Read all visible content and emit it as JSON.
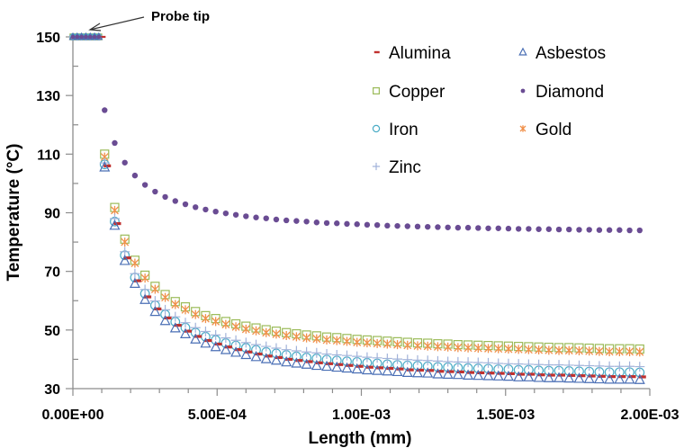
{
  "chart_data": {
    "type": "scatter",
    "title": "",
    "xlabel": "Length (mm)",
    "ylabel": "Temperature  (°C)",
    "xlim": [
      0,
      0.002
    ],
    "ylim": [
      30,
      150
    ],
    "x_ticks": [
      0,
      0.0005,
      0.001,
      0.0015,
      0.002
    ],
    "x_tick_labels": [
      "0.00E+00",
      "5.00E-04",
      "1.00E-03",
      "1.50E-03",
      "2.00E-03"
    ],
    "y_ticks": [
      30,
      50,
      70,
      90,
      110,
      130,
      150
    ],
    "y_tick_labels": [
      "30",
      "50",
      "70",
      "90",
      "110",
      "130",
      "150"
    ],
    "grid": false,
    "legend_position": "top-right",
    "annotation": {
      "text": "Probe tip",
      "points_to": [
        5e-05,
        150
      ]
    },
    "probe_tip": {
      "x": [
        0,
        1.5e-05,
        3e-05,
        4.5e-05,
        6e-05,
        7.5e-05,
        9e-05
      ],
      "temperature": 150
    },
    "x": [
      0.00011,
      0.000145,
      0.00018,
      0.000215,
      0.00025,
      0.000285,
      0.00032,
      0.000355,
      0.00039,
      0.000425,
      0.00046,
      0.000495,
      0.00053,
      0.000565,
      0.0006,
      0.000635,
      0.00067,
      0.000705,
      0.00074,
      0.000775,
      0.00081,
      0.000845,
      0.00088,
      0.000915,
      0.00095,
      0.000985,
      0.00102,
      0.001055,
      0.00109,
      0.001125,
      0.00116,
      0.001195,
      0.00123,
      0.001265,
      0.0013,
      0.001335,
      0.00137,
      0.001405,
      0.00144,
      0.001475,
      0.00151,
      0.001545,
      0.00158,
      0.001615,
      0.00165,
      0.001685,
      0.00172,
      0.001755,
      0.00179,
      0.001825,
      0.00186,
      0.001895,
      0.00193,
      0.001965
    ],
    "series": [
      {
        "name": "Alumina",
        "marker": "dash",
        "color": "#c0302e",
        "values": [
          106,
          86.3,
          74.6,
          66.8,
          61.3,
          57.2,
          54.1,
          51.6,
          49.6,
          47.8,
          46.4,
          45.2,
          44.2,
          43.3,
          42.5,
          41.8,
          41.1,
          40.6,
          40.0,
          39.6,
          39.2,
          38.8,
          38.5,
          38.2,
          37.9,
          37.6,
          37.3,
          37.1,
          36.9,
          36.7,
          36.4,
          36.3,
          36.2,
          35.9,
          35.8,
          35.7,
          35.5,
          35.4,
          35.3,
          35.2,
          35.1,
          34.9,
          34.9,
          34.7,
          34.6,
          34.6,
          34.5,
          34.4,
          34.3,
          34.2,
          34.1,
          34.1,
          34.1,
          34.0
        ]
      },
      {
        "name": "Asbestos",
        "marker": "triangle",
        "color": "#4a6fb5",
        "values": [
          105.5,
          85.6,
          73.6,
          65.8,
          60.3,
          56.2,
          53.1,
          50.6,
          48.6,
          46.8,
          45.4,
          44.2,
          43.2,
          42.3,
          41.5,
          40.8,
          40.1,
          39.6,
          39.0,
          38.6,
          38.2,
          37.8,
          37.5,
          37.2,
          36.9,
          36.6,
          36.3,
          36.1,
          35.9,
          35.7,
          35.4,
          35.3,
          35.2,
          34.9,
          34.8,
          34.7,
          34.5,
          34.4,
          34.3,
          34.2,
          34.1,
          33.9,
          33.9,
          33.7,
          33.6,
          33.6,
          33.5,
          33.4,
          33.3,
          33.2,
          33.1,
          33.1,
          33.1,
          33.0
        ]
      },
      {
        "name": "Copper",
        "marker": "square",
        "color": "#9bbb59",
        "values": [
          110,
          91.8,
          81.0,
          73.8,
          68.7,
          64.9,
          62.1,
          59.7,
          57.9,
          56.3,
          54.9,
          53.9,
          52.9,
          52.1,
          51.3,
          50.7,
          50.1,
          49.6,
          49.1,
          48.7,
          48.3,
          48.0,
          47.6,
          47.4,
          47.1,
          46.8,
          46.6,
          46.4,
          46.2,
          46.0,
          45.8,
          45.6,
          45.5,
          45.3,
          45.2,
          45.0,
          44.9,
          44.8,
          44.7,
          44.6,
          44.5,
          44.4,
          44.3,
          44.2,
          44.1,
          44.0,
          44.0,
          43.9,
          43.8,
          43.7,
          43.6,
          43.6,
          43.6,
          43.5
        ]
      },
      {
        "name": "Diamond",
        "marker": "dot",
        "color": "#6a4c93",
        "values": [
          125,
          113.8,
          107.1,
          102.7,
          99.5,
          97.2,
          95.4,
          94.0,
          92.9,
          91.9,
          91.1,
          90.4,
          89.8,
          89.3,
          88.8,
          88.4,
          88.1,
          87.7,
          87.4,
          87.2,
          87.0,
          86.7,
          86.5,
          86.4,
          86.2,
          86.1,
          85.9,
          85.8,
          85.6,
          85.5,
          85.4,
          85.3,
          85.2,
          85.1,
          85.0,
          84.9,
          84.9,
          84.8,
          84.7,
          84.7,
          84.6,
          84.5,
          84.5,
          84.4,
          84.4,
          84.3,
          84.3,
          84.2,
          84.2,
          84.1,
          84.1,
          84.1,
          84.0,
          84.0
        ]
      },
      {
        "name": "Iron",
        "marker": "circle",
        "color": "#4bacc6",
        "values": [
          106.5,
          87.0,
          75.5,
          67.9,
          62.4,
          58.4,
          55.3,
          52.8,
          50.8,
          49.1,
          47.7,
          46.6,
          45.5,
          44.7,
          43.9,
          43.2,
          42.5,
          42.0,
          41.5,
          41.0,
          40.6,
          40.3,
          39.9,
          39.6,
          39.3,
          39.1,
          38.8,
          38.6,
          38.3,
          38.1,
          37.9,
          37.8,
          37.6,
          37.4,
          37.3,
          37.1,
          37.0,
          36.9,
          36.8,
          36.6,
          36.6,
          36.4,
          36.4,
          36.2,
          36.1,
          36.1,
          36.0,
          35.9,
          35.8,
          35.7,
          35.6,
          35.6,
          35.6,
          35.5
        ]
      },
      {
        "name": "Gold",
        "marker": "asterisk",
        "color": "#f0904a",
        "values": [
          109,
          90.8,
          80.0,
          72.8,
          67.7,
          63.9,
          61.1,
          58.7,
          56.9,
          55.3,
          53.9,
          52.9,
          51.9,
          51.1,
          50.3,
          49.7,
          49.1,
          48.6,
          48.1,
          47.7,
          47.3,
          47.0,
          46.6,
          46.4,
          46.1,
          45.8,
          45.6,
          45.4,
          45.2,
          45.0,
          44.8,
          44.6,
          44.5,
          44.3,
          44.2,
          44.0,
          43.9,
          43.8,
          43.7,
          43.6,
          43.5,
          43.4,
          43.3,
          43.2,
          43.1,
          43.0,
          43.0,
          42.9,
          42.8,
          42.7,
          42.6,
          42.6,
          42.6,
          42.5
        ]
      },
      {
        "name": "Zinc",
        "marker": "plus",
        "color": "#a2b3da",
        "values": [
          107,
          88.0,
          76.7,
          69.2,
          63.8,
          59.9,
          56.9,
          54.5,
          52.5,
          50.8,
          49.5,
          48.3,
          47.3,
          46.5,
          45.7,
          45.0,
          44.4,
          43.8,
          43.3,
          42.9,
          42.5,
          42.2,
          41.8,
          41.5,
          41.3,
          41.0,
          40.7,
          40.5,
          40.3,
          40.1,
          39.9,
          39.7,
          39.6,
          39.4,
          39.2,
          39.1,
          39.0,
          38.9,
          38.8,
          38.6,
          38.5,
          38.4,
          38.3,
          38.2,
          38.1,
          38.1,
          38.0,
          37.9,
          37.8,
          37.7,
          37.6,
          37.6,
          37.6,
          37.5
        ]
      }
    ]
  }
}
